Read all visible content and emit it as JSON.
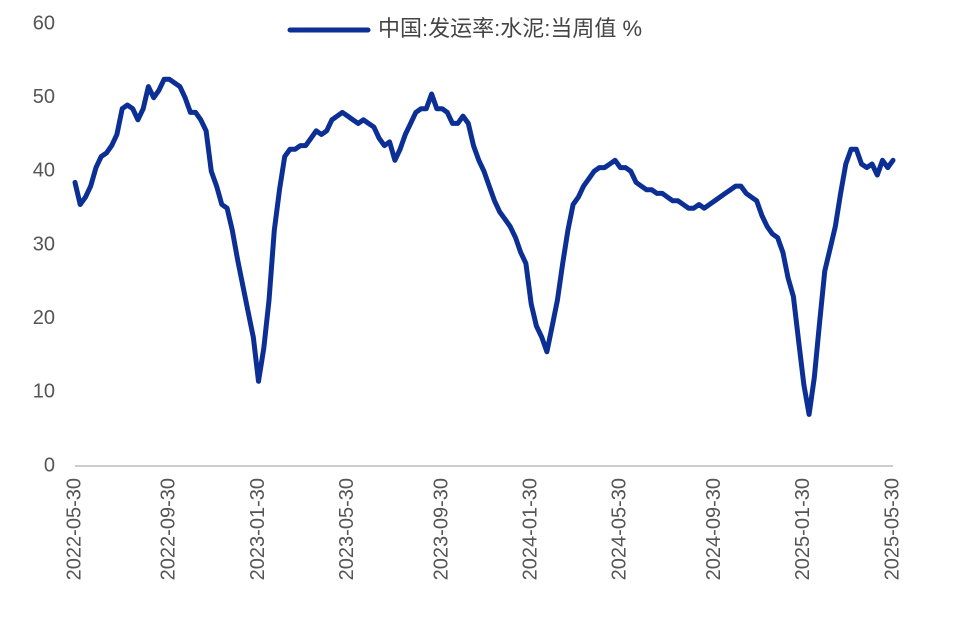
{
  "chart_data": {
    "type": "line",
    "series": [
      {
        "name": "中国:发运率:水泥:当周值 %",
        "color": "#0b2f95",
        "values": [
          38.5,
          35.5,
          36.5,
          38,
          40.5,
          42,
          42.5,
          43.5,
          45,
          48.5,
          49,
          48.5,
          47,
          48.5,
          51.5,
          50,
          51,
          52.5,
          52.5,
          52,
          51.5,
          50,
          48,
          48,
          47,
          45.5,
          40,
          38,
          35.5,
          35,
          32,
          28,
          24.5,
          21,
          17.5,
          11.5,
          16,
          22.5,
          32,
          37.5,
          42,
          43,
          43,
          43.5,
          43.5,
          44.5,
          45.5,
          45,
          45.5,
          47,
          47.5,
          48,
          47.5,
          47,
          46.5,
          47,
          46.5,
          46,
          44.5,
          43.5,
          44,
          41.5,
          43,
          45,
          46.5,
          48,
          48.5,
          48.5,
          50.5,
          48.5,
          48.5,
          48,
          46.5,
          46.5,
          47.5,
          46.5,
          43.5,
          41.5,
          40,
          38,
          36,
          34.5,
          33.5,
          32.5,
          31,
          29,
          27.5,
          22,
          19,
          17.5,
          15.5,
          19,
          22.5,
          27.5,
          32,
          35.5,
          36.5,
          38,
          39,
          40,
          40.5,
          40.5,
          41,
          41.5,
          40.5,
          40.5,
          40,
          38.5,
          38,
          37.5,
          37.5,
          37,
          37,
          36.5,
          36,
          36,
          35.5,
          35,
          35,
          35.5,
          35,
          35.5,
          36,
          36.5,
          37,
          37.5,
          38,
          38,
          37,
          36.5,
          36,
          34,
          32.5,
          31.5,
          31,
          29,
          25.5,
          23,
          17,
          11,
          7,
          12,
          19.5,
          26.5,
          29.5,
          32.5,
          37,
          41,
          43,
          43,
          41,
          40.5,
          41,
          39.5,
          41.5,
          40.5,
          41.5
        ]
      }
    ],
    "categories": [
      "2022-05-30",
      null,
      null,
      null,
      null,
      null,
      null,
      null,
      null,
      null,
      null,
      null,
      null,
      null,
      null,
      null,
      null,
      null,
      "2022-09-30",
      null,
      null,
      null,
      null,
      null,
      null,
      null,
      null,
      null,
      null,
      null,
      null,
      null,
      null,
      null,
      null,
      "2023-01-30",
      null,
      null,
      null,
      null,
      null,
      null,
      null,
      null,
      null,
      null,
      null,
      null,
      null,
      null,
      null,
      null,
      "2023-05-30",
      null,
      null,
      null,
      null,
      null,
      null,
      null,
      null,
      null,
      null,
      null,
      null,
      null,
      null,
      null,
      null,
      null,
      "2023-09-30",
      null,
      null,
      null,
      null,
      null,
      null,
      null,
      null,
      null,
      null,
      null,
      null,
      null,
      null,
      null,
      null,
      "2024-01-30",
      null,
      null,
      null,
      null,
      null,
      null,
      null,
      null,
      null,
      null,
      null,
      null,
      null,
      null,
      null,
      null,
      "2024-05-30",
      null,
      null,
      null,
      null,
      null,
      null,
      null,
      null,
      null,
      null,
      null,
      null,
      null,
      null,
      null,
      null,
      null,
      "2024-09-30",
      null,
      null,
      null,
      null,
      null,
      null,
      null,
      null,
      null,
      null,
      null,
      null,
      null,
      null,
      null,
      null,
      "2025-01-30",
      null,
      null,
      null,
      null,
      null,
      null,
      null,
      null,
      null,
      null,
      null,
      null,
      null,
      null,
      null,
      null,
      "2025-05-30"
    ],
    "ylim": [
      0,
      60
    ],
    "yticks": [
      0,
      10,
      20,
      30,
      40,
      50,
      60
    ],
    "grid": false,
    "legend": "top"
  }
}
